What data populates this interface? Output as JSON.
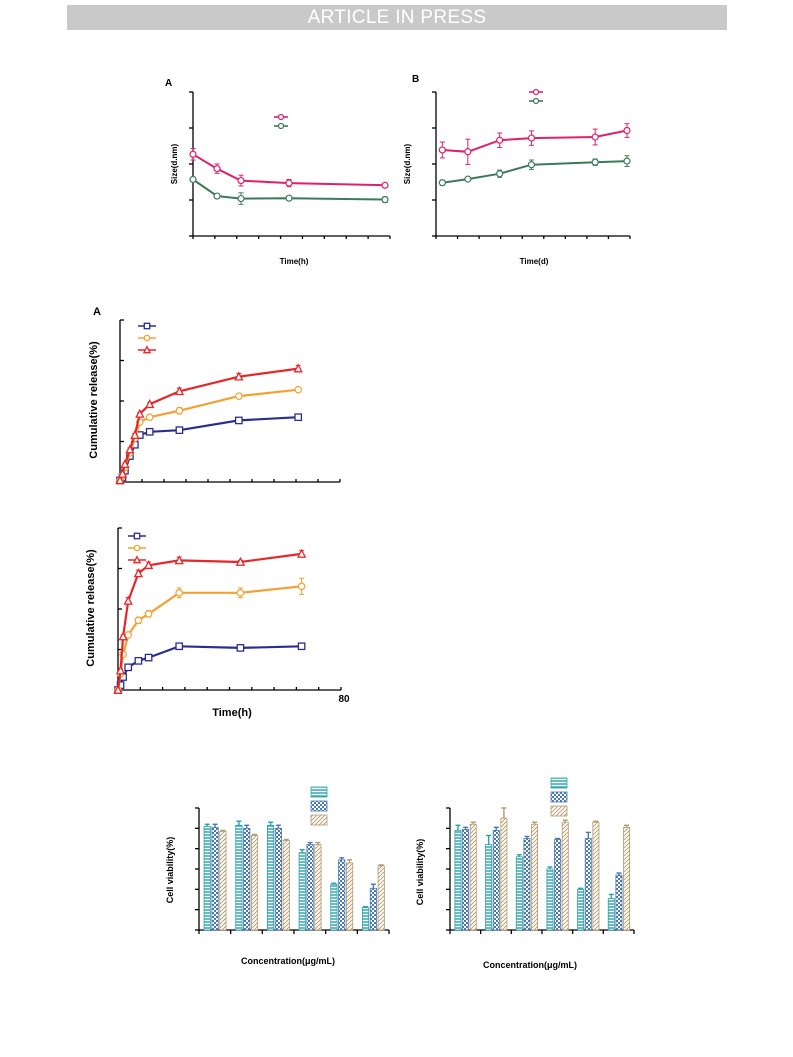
{
  "header": {
    "banner": "ARTICLE IN PRESS"
  },
  "colors": {
    "pink": "#e0206a",
    "green": "#3d7a5a",
    "blue": "#2b2e8c",
    "orange": "#f5a030",
    "red": "#e8262a",
    "bar_teal": "#26a3a9",
    "bar_blue": "#4a78b6",
    "bar_tan": "#b39a6a"
  },
  "charts": [
    {
      "id": "size-time-h",
      "type": "line",
      "panel_label": "A",
      "xlabel": "Time(h)",
      "ylabel": "Size(d.nm)",
      "xlim": [
        0,
        32
      ],
      "ylim": [
        0,
        4
      ],
      "series": [
        {
          "color_key": "pink",
          "marker": "circle",
          "x": [
            0,
            4,
            8,
            16,
            32
          ],
          "y": [
            2.27,
            1.87,
            1.54,
            1.47,
            1.41
          ],
          "err": [
            0.16,
            0.13,
            0.15,
            0.1,
            0.04
          ]
        },
        {
          "color_key": "green",
          "marker": "circle",
          "x": [
            0,
            4,
            8,
            16,
            32
          ],
          "y": [
            1.57,
            1.11,
            1.04,
            1.05,
            1.01
          ],
          "err": [
            0.05,
            0.06,
            0.16,
            0.03,
            0.08
          ]
        }
      ]
    },
    {
      "id": "size-time-d",
      "type": "line",
      "panel_label": "B",
      "xlabel": "Time(d)",
      "ylabel": "Size(d.nm)",
      "xlim": [
        0,
        30
      ],
      "ylim": [
        0,
        4
      ],
      "series": [
        {
          "color_key": "pink",
          "marker": "circle",
          "x": [
            1,
            5,
            10,
            15,
            25,
            30
          ],
          "y": [
            2.39,
            2.34,
            2.66,
            2.72,
            2.75,
            2.93
          ],
          "err": [
            0.22,
            0.35,
            0.2,
            0.2,
            0.22,
            0.19
          ]
        },
        {
          "color_key": "green",
          "marker": "circle",
          "x": [
            1,
            5,
            10,
            15,
            25,
            30
          ],
          "y": [
            1.48,
            1.58,
            1.73,
            1.98,
            2.05,
            2.08
          ],
          "err": [
            0.07,
            0.04,
            0.1,
            0.13,
            0.09,
            0.15
          ]
        }
      ]
    },
    {
      "id": "release-1",
      "type": "line",
      "panel_label": "A",
      "xlabel": "",
      "ylabel": "Cumulative release(%)",
      "xlim": [
        0,
        80
      ],
      "ylim": [
        0,
        100
      ],
      "series": [
        {
          "color_key": "blue",
          "marker": "square",
          "x": [
            0,
            1,
            2,
            4,
            6,
            8,
            12,
            24,
            48,
            72
          ],
          "y": [
            1,
            3,
            7,
            16,
            23,
            29,
            31,
            32,
            38,
            40
          ],
          "err": [
            0,
            1,
            1,
            1,
            1,
            1,
            1,
            1,
            1,
            1
          ]
        },
        {
          "color_key": "orange",
          "marker": "circle",
          "x": [
            0,
            1,
            2,
            4,
            6,
            8,
            12,
            24,
            48,
            72
          ],
          "y": [
            1,
            4,
            9,
            18,
            27,
            37,
            40,
            44,
            53,
            57
          ],
          "err": [
            0,
            1,
            1,
            1,
            1,
            1,
            1,
            2,
            1,
            1
          ]
        },
        {
          "color_key": "red",
          "marker": "triangle",
          "x": [
            0,
            1,
            2,
            4,
            6,
            8,
            12,
            24,
            48,
            72
          ],
          "y": [
            1,
            5,
            11,
            20,
            29,
            42,
            48,
            56,
            65,
            70
          ],
          "err": [
            0,
            1,
            1,
            1,
            1,
            1,
            1,
            2,
            2,
            2
          ]
        }
      ]
    },
    {
      "id": "release-2",
      "type": "line",
      "panel_label": "",
      "xlabel": "Time(h)",
      "ylabel": "Cumulative release(%)",
      "xlim": [
        0,
        80
      ],
      "ylim": [
        0,
        100
      ],
      "xtick_label": "80",
      "series": [
        {
          "color_key": "blue",
          "marker": "square",
          "x": [
            0,
            1,
            2,
            4,
            8,
            12,
            24,
            48,
            72
          ],
          "y": [
            0,
            3,
            8,
            14,
            18,
            20,
            27,
            26,
            27
          ],
          "err": [
            0,
            1,
            1,
            1,
            1,
            1,
            1,
            1,
            1
          ]
        },
        {
          "color_key": "orange",
          "marker": "circle",
          "x": [
            0,
            1,
            2,
            4,
            8,
            12,
            24,
            48,
            72
          ],
          "y": [
            0,
            10,
            22,
            34,
            43,
            47,
            60,
            60,
            64
          ],
          "err": [
            0,
            1,
            1,
            1,
            2,
            2,
            3,
            3,
            5
          ]
        },
        {
          "color_key": "red",
          "marker": "triangle",
          "x": [
            0,
            1,
            2,
            4,
            8,
            12,
            24,
            48,
            72
          ],
          "y": [
            0,
            12,
            33,
            55,
            72,
            77,
            80,
            79,
            84
          ],
          "err": [
            0,
            1,
            1,
            2,
            2,
            2,
            2,
            1,
            2
          ]
        }
      ]
    },
    {
      "id": "viability-1",
      "type": "bar",
      "panel_label": "",
      "xlabel": "Concentration(μg/mL)",
      "ylabel": "Cell viability(%)",
      "ylim": [
        0,
        120
      ],
      "groups": 6,
      "series": [
        {
          "color_key": "bar_teal",
          "pattern": "hlines",
          "values": [
            102,
            103,
            103,
            76,
            45,
            22
          ],
          "err": [
            2,
            4,
            3,
            3,
            1,
            1
          ]
        },
        {
          "color_key": "bar_blue",
          "pattern": "checker",
          "values": [
            101,
            100,
            100,
            84,
            69,
            41
          ],
          "err": [
            3,
            3,
            3,
            2,
            2,
            4
          ]
        },
        {
          "color_key": "bar_tan",
          "pattern": "diag",
          "values": [
            97,
            93,
            88,
            84,
            66,
            63
          ],
          "err": [
            1,
            1,
            1,
            2,
            3,
            1
          ]
        }
      ]
    },
    {
      "id": "viability-2",
      "type": "bar",
      "panel_label": "",
      "xlabel": "Concentration(μg/mL)",
      "ylabel": "Cell viability(%)",
      "ylim": [
        0,
        120
      ],
      "groups": 6,
      "series": [
        {
          "color_key": "bar_teal",
          "pattern": "hlines",
          "values": [
            98,
            84,
            72,
            60,
            40,
            31
          ],
          "err": [
            5,
            9,
            2,
            2,
            1,
            4
          ]
        },
        {
          "color_key": "bar_blue",
          "pattern": "checker",
          "values": [
            99,
            98,
            90,
            89,
            90,
            54
          ],
          "err": [
            2,
            3,
            2,
            1,
            6,
            2
          ]
        },
        {
          "color_key": "bar_tan",
          "pattern": "diag",
          "values": [
            104,
            110,
            104,
            106,
            106,
            101
          ],
          "err": [
            2,
            10,
            2,
            2,
            1,
            2
          ]
        }
      ]
    }
  ]
}
